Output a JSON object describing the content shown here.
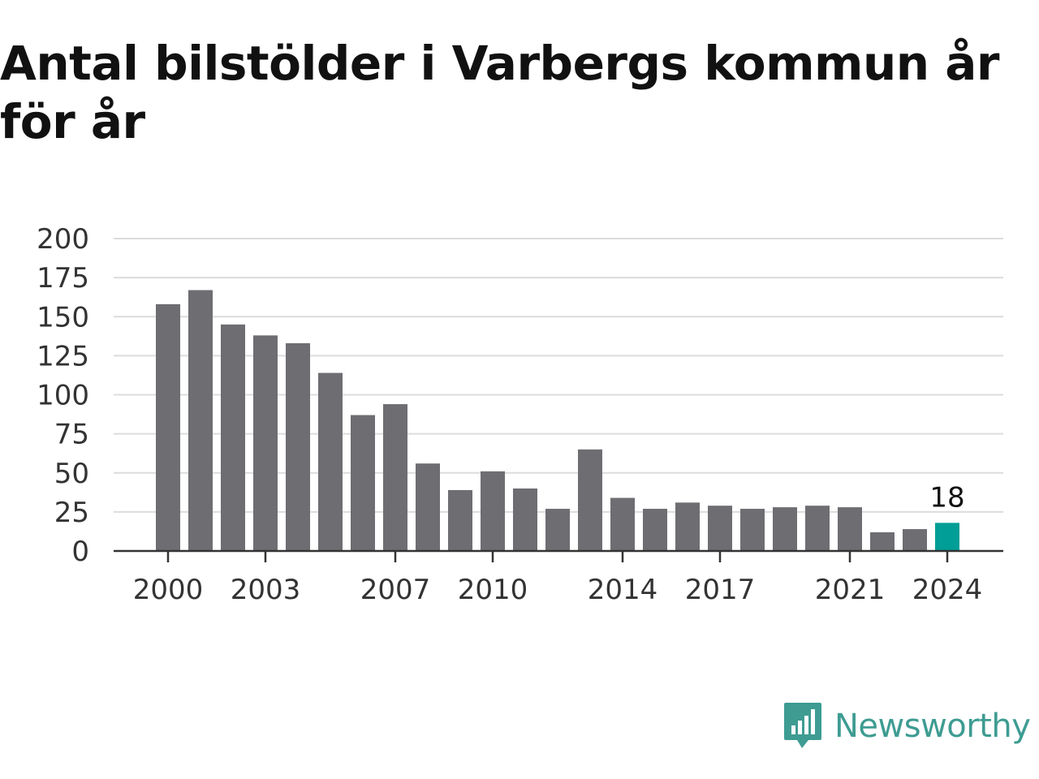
{
  "title": "Antal bilstölder i Varbergs kommun år för år",
  "brand": {
    "name": "Newsworthy",
    "icon": "newsworthy-logo-icon",
    "color": "#3e9c92"
  },
  "chart_data": {
    "type": "bar",
    "categories": [
      2000,
      2001,
      2002,
      2003,
      2004,
      2005,
      2006,
      2007,
      2008,
      2009,
      2010,
      2011,
      2012,
      2013,
      2014,
      2015,
      2016,
      2017,
      2018,
      2019,
      2020,
      2021,
      2022,
      2023,
      2024
    ],
    "values": [
      158,
      167,
      145,
      138,
      133,
      114,
      87,
      94,
      56,
      39,
      51,
      40,
      27,
      65,
      34,
      27,
      31,
      29,
      27,
      28,
      29,
      28,
      12,
      14,
      18
    ],
    "x_tick_labels": [
      2000,
      2003,
      2007,
      2010,
      2014,
      2017,
      2021,
      2024
    ],
    "y_ticks": [
      0,
      25,
      50,
      75,
      100,
      125,
      150,
      175,
      200
    ],
    "ylim": [
      0,
      200
    ],
    "grid": true,
    "highlight": {
      "category": 2024,
      "label": "18",
      "color": "#009e96"
    },
    "bar_color": "#6e6d72"
  }
}
